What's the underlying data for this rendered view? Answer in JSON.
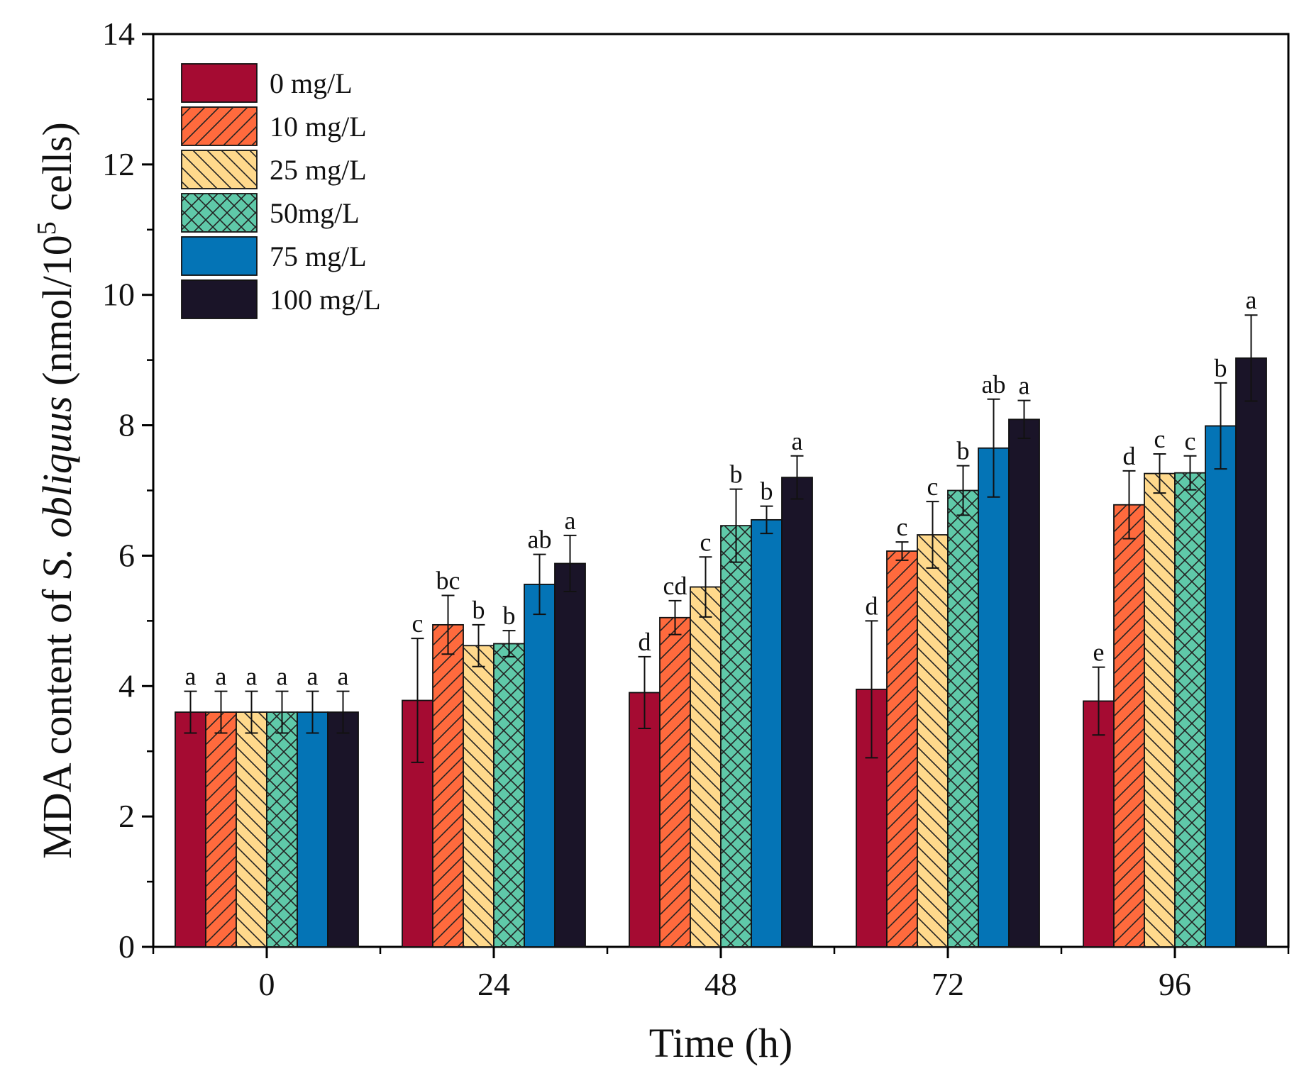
{
  "chart_data": {
    "type": "bar",
    "xlabel": "Time (h)",
    "ylabel": {
      "prefix": "MDA content of ",
      "species": "S. obliquus",
      "unit_start": " (nmol/10",
      "superscript": "5",
      "unit_end": " cells)"
    },
    "categories": [
      "0",
      "24",
      "48",
      "72",
      "96"
    ],
    "ylim": [
      0,
      14
    ],
    "yticks": [
      "0",
      "2",
      "4",
      "6",
      "8",
      "10",
      "12",
      "14"
    ],
    "legend_position": "top-left",
    "series": [
      {
        "name": "0 mg/L",
        "color": "#A50B32",
        "pattern": "solid",
        "values": [
          3.6,
          3.78,
          3.9,
          3.95,
          3.77
        ],
        "errors": [
          0.32,
          0.95,
          0.55,
          1.05,
          0.52
        ],
        "labels": [
          "a",
          "c",
          "d",
          "d",
          "e"
        ]
      },
      {
        "name": "10 mg/L",
        "color": "#FF6A3D",
        "pattern": "hatch-forward",
        "values": [
          3.6,
          4.94,
          5.05,
          6.07,
          6.78
        ],
        "errors": [
          0.32,
          0.45,
          0.26,
          0.14,
          0.52
        ],
        "labels": [
          "a",
          "bc",
          "cd",
          "c",
          "d"
        ]
      },
      {
        "name": "25 mg/L",
        "color": "#FFD98C",
        "pattern": "hatch-back",
        "values": [
          3.6,
          4.62,
          5.52,
          6.32,
          7.26
        ],
        "errors": [
          0.32,
          0.32,
          0.46,
          0.51,
          0.3
        ],
        "labels": [
          "a",
          "b",
          "c",
          "c",
          "c"
        ]
      },
      {
        "name": "50mg/L",
        "color": "#5FC9A9",
        "pattern": "crosshatch",
        "values": [
          3.6,
          4.65,
          6.46,
          7.0,
          7.27
        ],
        "errors": [
          0.32,
          0.2,
          0.56,
          0.38,
          0.26
        ],
        "labels": [
          "a",
          "b",
          "b",
          "b",
          "c"
        ]
      },
      {
        "name": "75 mg/L",
        "color": "#0474B6",
        "pattern": "solid",
        "values": [
          3.6,
          5.56,
          6.55,
          7.65,
          7.99
        ],
        "errors": [
          0.32,
          0.46,
          0.21,
          0.75,
          0.66
        ],
        "labels": [
          "a",
          "ab",
          "b",
          "ab",
          "b"
        ]
      },
      {
        "name": "100 mg/L",
        "color": "#1A1428",
        "pattern": "solid",
        "values": [
          3.6,
          5.88,
          7.2,
          8.09,
          9.03
        ],
        "errors": [
          0.32,
          0.43,
          0.33,
          0.29,
          0.66
        ],
        "labels": [
          "a",
          "a",
          "a",
          "a",
          "a"
        ]
      }
    ]
  }
}
